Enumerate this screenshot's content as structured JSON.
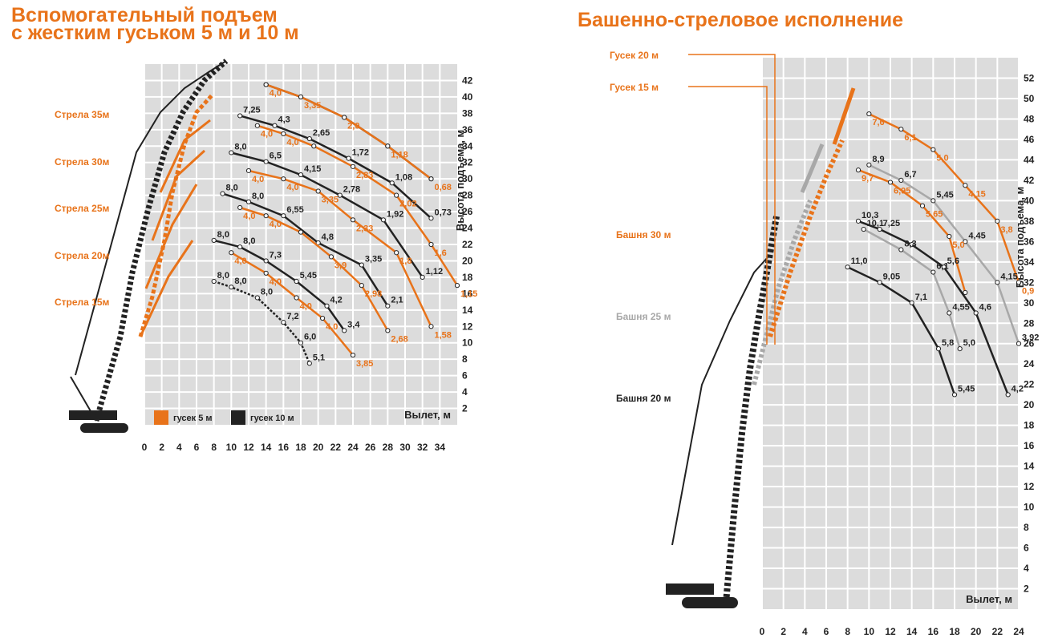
{
  "colors": {
    "orange": "#e8731a",
    "black": "#222222",
    "gray": "#a8a8a8",
    "grid": "#dcdcdc",
    "gridline": "#ffffff"
  },
  "titles": {
    "left_line1": "Вспомогательный подъем",
    "left_line2": "с жестким гуськом 5 м и 10 м",
    "right": "Башенно-стреловое исполнение"
  },
  "legend": {
    "orange": "гусек 5 м",
    "black": "гусек 10 м"
  },
  "left_booms": [
    "Стрела 35м",
    "Стрела 30м",
    "Стрела 25м",
    "Стрела 20м",
    "Стрела 15м"
  ],
  "right_labels": {
    "jib20": "Гусек 20 м",
    "jib15": "Гусек 15 м",
    "tower30": "Башня 30 м",
    "tower25": "Башня 25 м",
    "tower20": "Башня 20 м"
  },
  "chart_data": [
    {
      "type": "line",
      "xlabel": "Вылет, м",
      "ylabel": "Высота подъема, м",
      "xlim": [
        0,
        36
      ],
      "ylim": [
        0,
        44
      ],
      "x_ticks": [
        0,
        2,
        4,
        6,
        8,
        10,
        12,
        14,
        16,
        18,
        20,
        22,
        24,
        26,
        28,
        30,
        32,
        34
      ],
      "y_ticks": [
        2,
        4,
        6,
        8,
        10,
        12,
        14,
        16,
        18,
        20,
        22,
        24,
        26,
        28,
        30,
        32,
        34,
        36,
        38,
        40,
        42
      ],
      "series": [
        {
          "color": "black",
          "points": [
            [
              14,
              41.5
            ],
            [
              18,
              40
            ],
            [
              23,
              37.5
            ],
            [
              28,
              34
            ],
            [
              33,
              30
            ]
          ],
          "labels": [],
          "dashed": false
        },
        {
          "color": "orange",
          "points": [
            [
              14,
              41.5
            ],
            [
              18,
              40
            ],
            [
              23,
              37.5
            ],
            [
              28,
              34
            ],
            [
              33,
              30
            ]
          ],
          "labels": [
            "4,0",
            "3,35",
            "2,0",
            "1,18",
            "0,68"
          ],
          "dashed": false
        },
        {
          "color": "black",
          "points": [
            [
              11,
              37.7
            ],
            [
              15,
              36.5
            ],
            [
              19,
              34.9
            ],
            [
              23.5,
              32.5
            ],
            [
              28.5,
              29.5
            ],
            [
              33,
              25.2
            ]
          ],
          "labels": [
            "7,25",
            "4,3",
            "2,65",
            "1,72",
            "1,08",
            "0,73"
          ],
          "dashed": false
        },
        {
          "color": "orange",
          "points": [
            [
              13,
              36.5
            ],
            [
              16,
              35.5
            ],
            [
              19.5,
              34
            ],
            [
              24,
              31.5
            ],
            [
              29,
              28
            ],
            [
              33,
              22
            ],
            [
              36,
              17
            ]
          ],
          "labels": [
            "4,0",
            "4,0",
            "",
            "2,83",
            "2,02",
            "1,6",
            "1,15"
          ],
          "dashed": false
        },
        {
          "color": "black",
          "points": [
            [
              10,
              33.2
            ],
            [
              14,
              32.1
            ],
            [
              18,
              30.5
            ],
            [
              22.5,
              28
            ],
            [
              27.5,
              25
            ],
            [
              32,
              18
            ]
          ],
          "labels": [
            "8,0",
            "6,5",
            "4,15",
            "2,78",
            "1,92",
            "1,12"
          ],
          "dashed": false
        },
        {
          "color": "orange",
          "points": [
            [
              12,
              31
            ],
            [
              16,
              30
            ],
            [
              20,
              28.5
            ],
            [
              24,
              25
            ],
            [
              29,
              21
            ],
            [
              33,
              12
            ]
          ],
          "labels": [
            "4,0",
            "4,0",
            "3,35",
            "2,33",
            "1,8",
            "1,58"
          ],
          "dashed": false
        },
        {
          "color": "black",
          "points": [
            [
              9,
              28.2
            ],
            [
              12,
              27.2
            ],
            [
              16,
              25.5
            ],
            [
              20,
              22.2
            ],
            [
              25,
              19.5
            ],
            [
              28,
              14.5
            ]
          ],
          "labels": [
            "8,0",
            "8,0",
            "6,55",
            "4,8",
            "3,35",
            "2,1"
          ],
          "dashed": false
        },
        {
          "color": "orange",
          "points": [
            [
              11,
              26.5
            ],
            [
              14,
              25.5
            ],
            [
              18,
              23.5
            ],
            [
              21.5,
              20.5
            ],
            [
              25,
              17
            ],
            [
              28,
              11.5
            ]
          ],
          "labels": [
            "4,0",
            "4,0",
            "",
            "3,9",
            "2,98",
            "2,68"
          ],
          "dashed": false
        },
        {
          "color": "black",
          "points": [
            [
              8,
              22.5
            ],
            [
              11,
              21.7
            ],
            [
              14,
              20
            ],
            [
              17.5,
              17.5
            ],
            [
              21,
              14.5
            ],
            [
              23,
              11.5
            ]
          ],
          "labels": [
            "8,0",
            "8,0",
            "7,3",
            "5,45",
            "4,2",
            "3,4"
          ],
          "dashed": false
        },
        {
          "color": "orange",
          "points": [
            [
              10,
              21
            ],
            [
              14,
              18.5
            ],
            [
              17.5,
              15.5
            ],
            [
              20.5,
              13
            ],
            [
              24,
              8.5
            ]
          ],
          "labels": [
            "4,0",
            "4,0",
            "4,0",
            "4,0",
            "3,85"
          ],
          "dashed": false
        },
        {
          "color": "black",
          "points": [
            [
              8,
              17.5
            ],
            [
              10,
              16.8
            ],
            [
              13,
              15.5
            ],
            [
              16,
              12.5
            ],
            [
              18,
              10
            ],
            [
              19,
              7.5
            ]
          ],
          "labels": [
            "8,0",
            "8,0",
            "8,0",
            "7,2",
            "6,0",
            "5,1"
          ],
          "dashed": true
        }
      ]
    },
    {
      "type": "line",
      "xlabel": "Вылет, м",
      "ylabel": "Высота подъема, м",
      "xlim": [
        0,
        24
      ],
      "ylim": [
        0,
        54
      ],
      "x_ticks": [
        0,
        2,
        4,
        6,
        8,
        10,
        12,
        14,
        16,
        18,
        20,
        22,
        24
      ],
      "y_ticks": [
        2,
        4,
        6,
        8,
        10,
        12,
        14,
        16,
        18,
        20,
        22,
        24,
        26,
        28,
        30,
        32,
        34,
        36,
        38,
        40,
        42,
        44,
        46,
        48,
        50,
        52
      ],
      "series": [
        {
          "color": "orange",
          "points": [
            [
              10,
              48.5
            ],
            [
              13,
              47
            ],
            [
              16,
              45
            ],
            [
              19,
              41.5
            ],
            [
              22,
              38
            ],
            [
              24,
              32
            ]
          ],
          "labels": [
            "7,6",
            "6,1",
            "5,0",
            "4,15",
            "3,8",
            "0,9"
          ],
          "dashed": false
        },
        {
          "color": "gray",
          "points": [
            [
              10,
              43.5
            ],
            [
              13,
              42
            ],
            [
              16,
              40
            ],
            [
              19,
              36
            ],
            [
              22,
              32
            ],
            [
              24,
              26
            ]
          ],
          "labels": [
            "8,9",
            "6,7",
            "5,45",
            "4,45",
            "4,15",
            "3,92"
          ],
          "dashed": false
        },
        {
          "color": "orange",
          "points": [
            [
              9,
              43
            ],
            [
              12,
              41.8
            ],
            [
              15,
              39.5
            ],
            [
              17.5,
              36.5
            ],
            [
              19,
              31
            ]
          ],
          "labels": [
            "9,7",
            "6,95",
            "5,65",
            "5,0",
            ""
          ],
          "dashed": false
        },
        {
          "color": "black",
          "points": [
            [
              9,
              38
            ],
            [
              11,
              37.2
            ],
            [
              14,
              35.7
            ],
            [
              17,
              33.5
            ],
            [
              20,
              29
            ],
            [
              23,
              21
            ]
          ],
          "labels": [
            "10,3",
            "7,25",
            "",
            "5,6",
            "4,6",
            "4,2"
          ],
          "dashed": false
        },
        {
          "color": "gray",
          "points": [
            [
              9.5,
              37.2
            ],
            [
              13,
              35.2
            ],
            [
              16,
              33
            ],
            [
              17.5,
              29
            ],
            [
              18.5,
              25.5
            ]
          ],
          "labels": [
            "10,1",
            "8,3",
            "6,1",
            "4,55",
            "5,0"
          ],
          "dashed": false
        },
        {
          "color": "black",
          "points": [
            [
              8,
              33.5
            ],
            [
              11,
              32
            ],
            [
              14,
              30
            ],
            [
              16.5,
              25.5
            ],
            [
              18,
              21
            ]
          ],
          "labels": [
            "11,0",
            "9,05",
            "7,1",
            "5,8",
            "5,45"
          ],
          "dashed": false
        }
      ]
    }
  ]
}
